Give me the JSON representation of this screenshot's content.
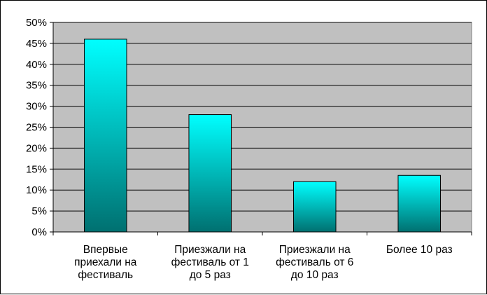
{
  "chart_data": {
    "type": "bar",
    "categories": [
      [
        "Впервые",
        "приехали на",
        "фестиваль"
      ],
      [
        "Приезжали на",
        "фестиваль от 1",
        "до 5 раз"
      ],
      [
        "Приезжали на",
        "фестиваль от 6",
        "до 10 раз"
      ],
      [
        "Более 10 раз"
      ]
    ],
    "values": [
      46,
      28,
      12,
      13.5
    ],
    "ylim": [
      0,
      50
    ],
    "ytick_step": 5,
    "ytick_format": "percent",
    "grid": true,
    "plot_background": "#c0c0c0",
    "bar_gradient": [
      "#00ffff",
      "#007070"
    ],
    "title": "",
    "xlabel": "",
    "ylabel": ""
  }
}
